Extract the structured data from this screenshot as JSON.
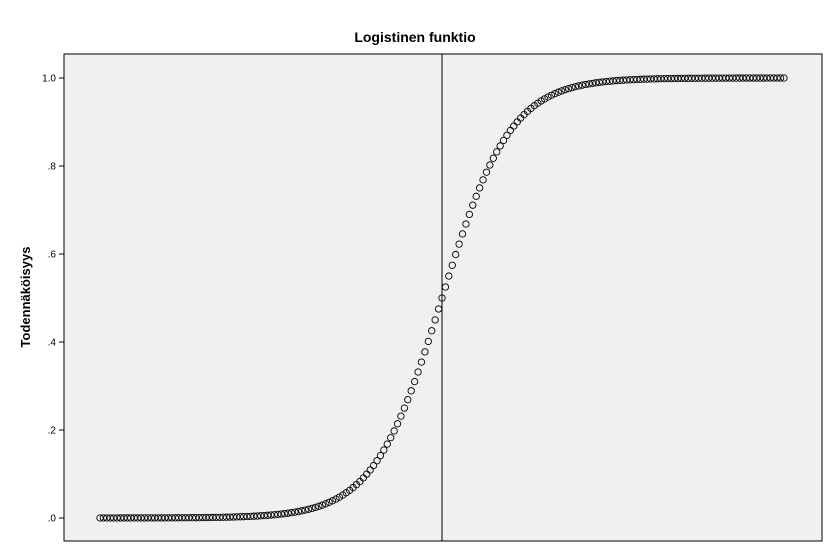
{
  "chart_data": {
    "type": "scatter",
    "title": "Logistinen funktio",
    "xlabel": "",
    "ylabel": "Todennäköisyys",
    "ylim": [
      0,
      1.0
    ],
    "y_ticks": [
      {
        "value": 0.0,
        "label": ".0"
      },
      {
        "value": 0.2,
        "label": ".2"
      },
      {
        "value": 0.4,
        "label": ".4"
      },
      {
        "value": 0.6,
        "label": ".6"
      },
      {
        "value": 0.8,
        "label": ".8"
      },
      {
        "value": 1.0,
        "label": "1.0"
      }
    ],
    "x_range": [
      -10,
      10
    ],
    "x_step": 0.1,
    "function": "1 / (1 + exp(-x))",
    "reference_line_x": 0,
    "grid": false,
    "colors": {
      "plot_background": "#f0f0f0",
      "marker_stroke": "#000000",
      "reference_line": "#000000"
    }
  }
}
